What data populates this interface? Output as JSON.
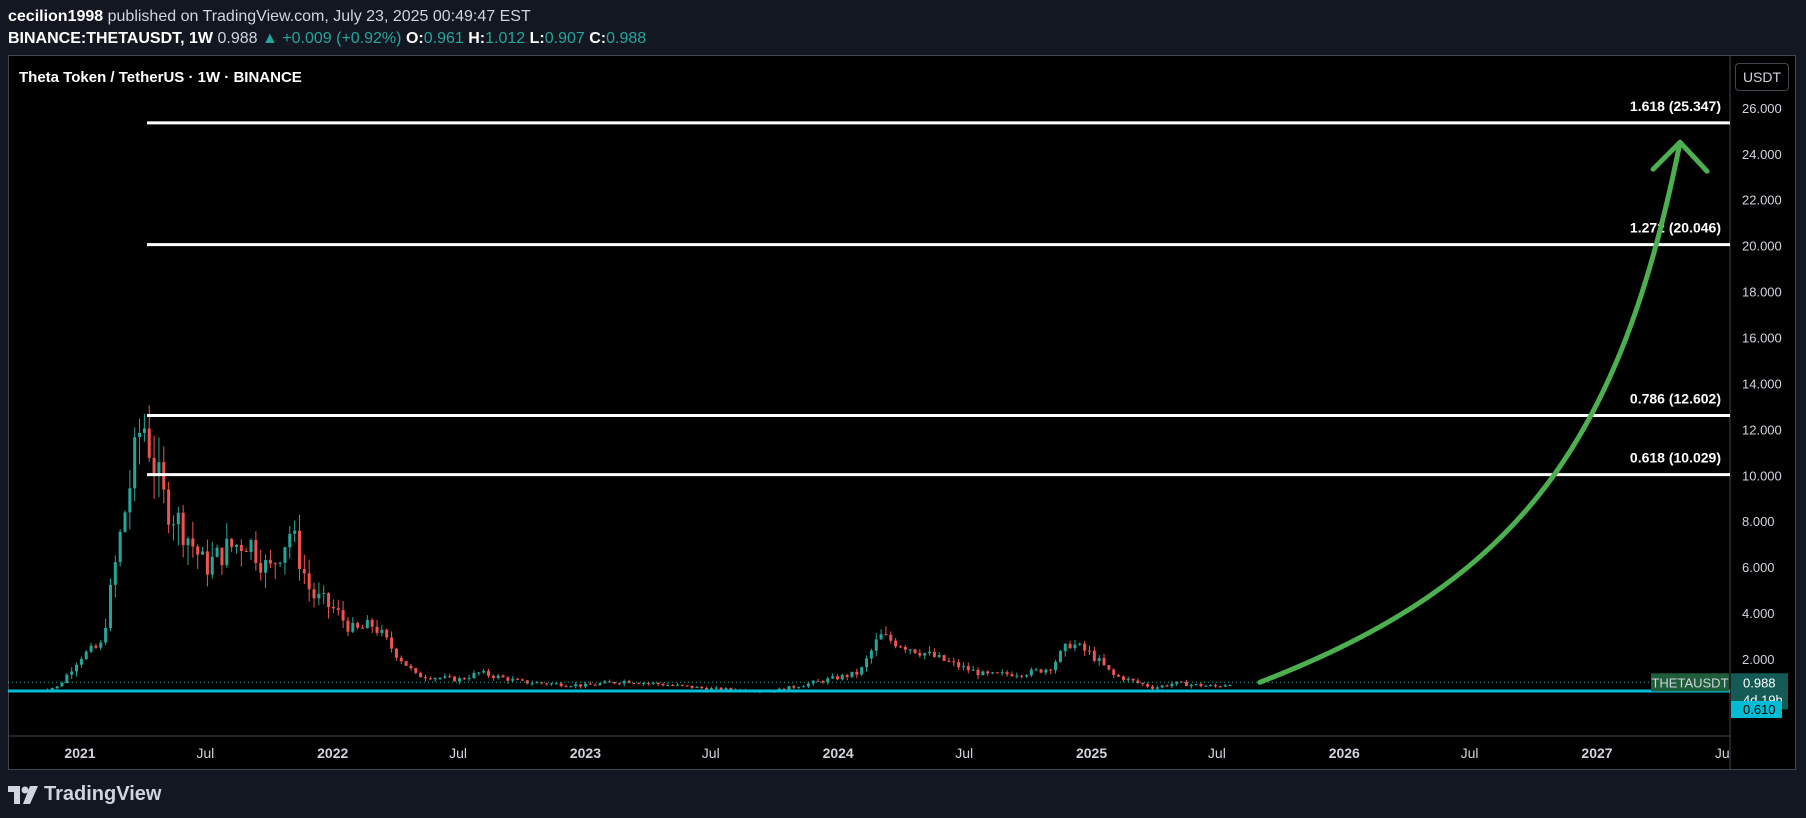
{
  "header": {
    "author": "cecilion1998",
    "published": "published on TradingView.com, July 23, 2025 00:49:47 EST",
    "symbol": "BINANCE:THETAUSDT, 1W",
    "last": "0.988",
    "change": "+0.009 (+0.92%)",
    "o_label": "O:",
    "o": "0.961",
    "h_label": "H:",
    "h": "1.012",
    "l_label": "L:",
    "l": "0.907",
    "c_label": "C:",
    "c": "0.988"
  },
  "chart_title": "Theta Token / TetherUS · 1W · BINANCE",
  "currency_button": "USDT",
  "footer": {
    "brand": "TradingView"
  },
  "colors": {
    "up": "#26a69a",
    "down": "#ef5350",
    "support": "#00bcd4",
    "arrow": "#4caf50",
    "level": "#ffffff",
    "background": "#000000"
  },
  "chart_data": {
    "type": "candlestick",
    "y_axis": {
      "labels": [
        "26.000",
        "24.000",
        "22.000",
        "20.000",
        "18.000",
        "16.000",
        "14.000",
        "12.000",
        "10.000",
        "8.000",
        "6.000",
        "4.000",
        "2.000"
      ],
      "values": [
        26,
        24,
        22,
        20,
        18,
        16,
        14,
        12,
        10,
        8,
        6,
        4,
        2
      ],
      "ylim": [
        -1.35,
        28.3
      ]
    },
    "x_axis": {
      "labels": [
        "2021",
        "Jul",
        "2022",
        "Jul",
        "2023",
        "Jul",
        "2024",
        "Jul",
        "2025",
        "Jul",
        "2026",
        "Jul",
        "2027",
        "Ju"
      ],
      "dates": [
        "2021-01",
        "2021-07",
        "2022-01",
        "2022-07",
        "2023-01",
        "2023-07",
        "2024-01",
        "2024-07",
        "2025-01",
        "2025-07",
        "2026-01",
        "2026-07",
        "2027-01",
        "2027-07"
      ]
    },
    "fib_levels": [
      {
        "label": "1.618 (25.347)",
        "value": 25.347
      },
      {
        "label": "1.272 (20.046)",
        "value": 20.046
      },
      {
        "label": "0.786 (12.602)",
        "value": 12.602
      },
      {
        "label": "0.618 (10.029)",
        "value": 10.029
      }
    ],
    "support_line": {
      "value": 0.61,
      "label": "0.610"
    },
    "price_tag": {
      "symbol": "THETAUSDT",
      "value": "0.988",
      "countdown": "4d 19h"
    },
    "price_path": [
      [
        "2020-11",
        0.62
      ],
      [
        "2020-12",
        0.8
      ],
      [
        "2021-01",
        2.1
      ],
      [
        "2021-02",
        2.6
      ],
      [
        "2021-03",
        7.5
      ],
      [
        "2021-04",
        12.5
      ],
      [
        "2021-05",
        9.0
      ],
      [
        "2021-06",
        7.6
      ],
      [
        "2021-07",
        6.0
      ],
      [
        "2021-08",
        6.8
      ],
      [
        "2021-09",
        7.2
      ],
      [
        "2021-10",
        5.8
      ],
      [
        "2021-11",
        7.6
      ],
      [
        "2021-12",
        4.8
      ],
      [
        "2022-01",
        4.2
      ],
      [
        "2022-02",
        3.2
      ],
      [
        "2022-03",
        3.5
      ],
      [
        "2022-04",
        2.3
      ],
      [
        "2022-05",
        1.3
      ],
      [
        "2022-07",
        1.1
      ],
      [
        "2022-08",
        1.4
      ],
      [
        "2022-10",
        1.0
      ],
      [
        "2023-01",
        0.85
      ],
      [
        "2023-03",
        1.05
      ],
      [
        "2023-07",
        0.7
      ],
      [
        "2023-10",
        0.62
      ],
      [
        "2023-12",
        1.0
      ],
      [
        "2024-02",
        1.4
      ],
      [
        "2024-03",
        3.0
      ],
      [
        "2024-05",
        2.3
      ],
      [
        "2024-07",
        1.6
      ],
      [
        "2024-08",
        1.3
      ],
      [
        "2024-10",
        1.4
      ],
      [
        "2024-11",
        1.6
      ],
      [
        "2024-12",
        2.7
      ],
      [
        "2025-01",
        2.2
      ],
      [
        "2025-02",
        1.3
      ],
      [
        "2025-04",
        0.75
      ],
      [
        "2025-05",
        0.95
      ],
      [
        "2025-07",
        0.8
      ],
      [
        "2025-07-23",
        0.988
      ]
    ],
    "projection_arrow": {
      "from": [
        "2025-09",
        0.988
      ],
      "to": [
        "2027-05",
        24.5
      ]
    }
  }
}
